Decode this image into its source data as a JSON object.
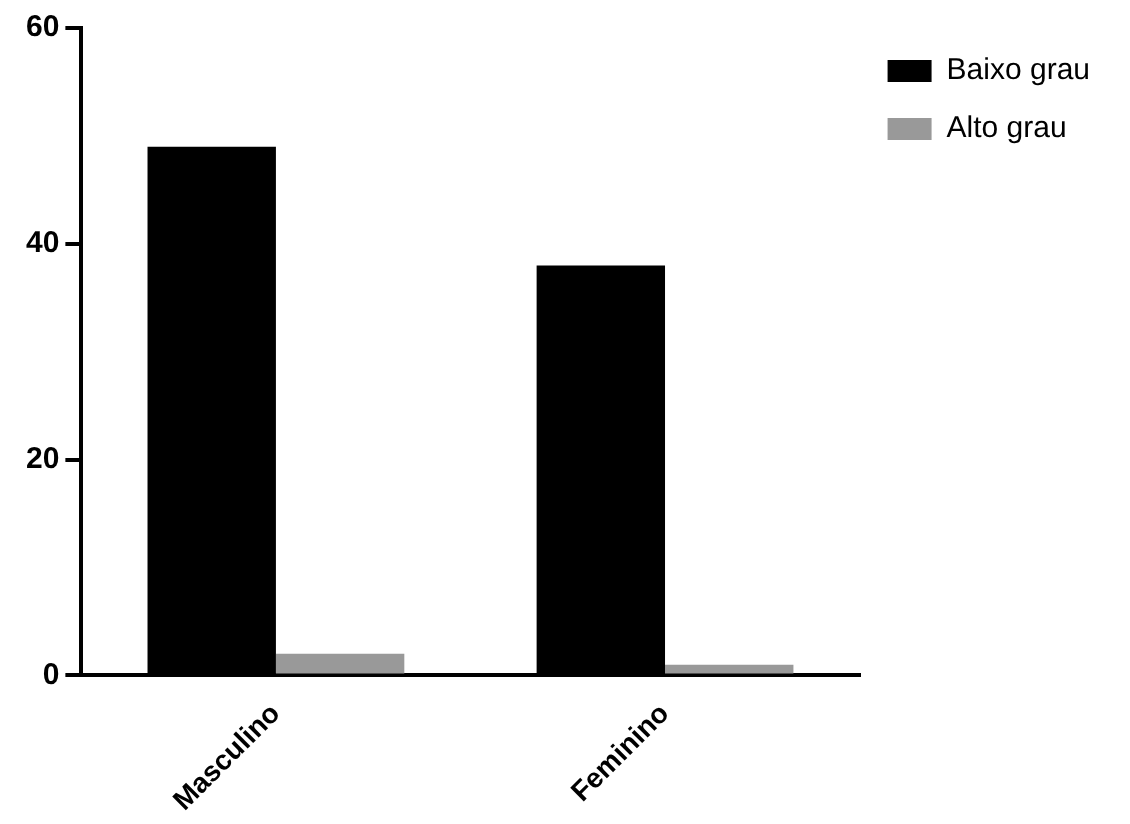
{
  "chart_data": {
    "type": "bar",
    "categories": [
      "Masculino",
      "Feminino"
    ],
    "series": [
      {
        "name": "Baixo grau",
        "color": "#000000",
        "values": [
          49,
          38
        ]
      },
      {
        "name": "Alto grau",
        "color": "#999999",
        "values": [
          2,
          1
        ]
      }
    ],
    "ylim": [
      0,
      60
    ],
    "yticks": [
      0,
      20,
      40,
      60
    ],
    "grid": false,
    "legend": "top right"
  }
}
